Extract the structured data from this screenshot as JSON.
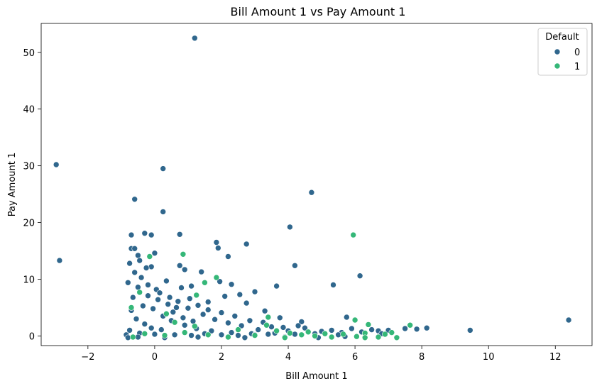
{
  "chart_data": {
    "type": "scatter",
    "title": "Bill Amount 1 vs Pay Amount 1",
    "xlabel": "Bill Amount 1",
    "ylabel": "Pay Amount 1",
    "xlim": [
      -3.4,
      13.1
    ],
    "ylim": [
      -1.7,
      55.1
    ],
    "xticks": [
      -2,
      0,
      2,
      4,
      6,
      8,
      10,
      12
    ],
    "yticks": [
      0,
      10,
      20,
      30,
      40,
      50
    ],
    "grid": false,
    "legend": {
      "title": "Default",
      "placement": "top-right",
      "entries": [
        "0",
        "1"
      ]
    },
    "colors": {
      "0": "#30678d",
      "1": "#35b778"
    },
    "series": [
      {
        "name": "0",
        "points": [
          [
            1.2,
            52.5
          ],
          [
            -2.95,
            30.2
          ],
          [
            0.25,
            29.5
          ],
          [
            4.7,
            25.3
          ],
          [
            -0.6,
            24.1
          ],
          [
            0.25,
            21.9
          ],
          [
            4.05,
            19.2
          ],
          [
            -0.3,
            18.1
          ],
          [
            -0.1,
            17.8
          ],
          [
            -0.7,
            17.8
          ],
          [
            0.75,
            17.9
          ],
          [
            1.85,
            16.5
          ],
          [
            2.75,
            16.2
          ],
          [
            -0.7,
            15.4
          ],
          [
            0.0,
            14.6
          ],
          [
            -0.5,
            14.2
          ],
          [
            2.2,
            14.0
          ],
          [
            -2.85,
            13.3
          ],
          [
            -0.75,
            12.8
          ],
          [
            0.75,
            12.4
          ],
          [
            4.2,
            12.4
          ],
          [
            -0.1,
            12.2
          ],
          [
            0.9,
            11.7
          ],
          [
            1.4,
            11.3
          ],
          [
            6.15,
            10.6
          ],
          [
            1.95,
            9.6
          ],
          [
            2.3,
            9.1
          ],
          [
            5.35,
            9.0
          ],
          [
            3.65,
            8.8
          ],
          [
            1.1,
            8.8
          ],
          [
            0.8,
            8.5
          ],
          [
            2.55,
            7.3
          ],
          [
            2.1,
            7.0
          ],
          [
            3.0,
            7.8
          ],
          [
            2.75,
            5.8
          ],
          [
            3.3,
            4.4
          ],
          [
            3.75,
            3.2
          ],
          [
            5.75,
            3.3
          ],
          [
            4.4,
            2.5
          ],
          [
            9.45,
            1.0
          ],
          [
            12.4,
            2.8
          ],
          [
            8.15,
            1.4
          ],
          [
            7.85,
            1.2
          ],
          [
            7.5,
            1.3
          ],
          [
            7.0,
            1.0
          ],
          [
            6.7,
            0.9
          ],
          [
            6.5,
            1.1
          ],
          [
            6.2,
            0.7
          ],
          [
            5.9,
            1.3
          ],
          [
            5.6,
            0.6
          ],
          [
            5.3,
            1.0
          ],
          [
            5.0,
            0.8
          ],
          [
            4.8,
            0.4
          ],
          [
            4.5,
            1.4
          ],
          [
            4.3,
            1.8
          ],
          [
            4.0,
            0.9
          ],
          [
            3.85,
            1.5
          ],
          [
            3.5,
            1.6
          ],
          [
            3.25,
            2.4
          ],
          [
            3.1,
            1.1
          ],
          [
            2.85,
            2.7
          ],
          [
            2.6,
            1.8
          ],
          [
            2.4,
            3.5
          ],
          [
            2.2,
            2.3
          ],
          [
            2.0,
            4.1
          ],
          [
            1.8,
            2.9
          ],
          [
            1.6,
            4.6
          ],
          [
            1.45,
            3.8
          ],
          [
            1.3,
            5.4
          ],
          [
            1.15,
            2.6
          ],
          [
            1.0,
            4.9
          ],
          [
            0.85,
            3.2
          ],
          [
            0.7,
            6.1
          ],
          [
            0.55,
            4.2
          ],
          [
            0.4,
            5.6
          ],
          [
            0.25,
            3.5
          ],
          [
            0.1,
            6.4
          ],
          [
            -0.05,
            4.8
          ],
          [
            -0.2,
            7.1
          ],
          [
            -0.35,
            5.3
          ],
          [
            -0.5,
            8.6
          ],
          [
            -0.65,
            6.8
          ],
          [
            -0.8,
            9.4
          ],
          [
            -0.6,
            11.2
          ],
          [
            -0.4,
            10.3
          ],
          [
            -0.2,
            9.0
          ],
          [
            0.05,
            8.2
          ],
          [
            -0.7,
            4.5
          ],
          [
            -0.55,
            3.0
          ],
          [
            -0.3,
            2.1
          ],
          [
            -0.1,
            1.4
          ],
          [
            0.2,
            1.1
          ],
          [
            0.5,
            2.7
          ],
          [
            0.9,
            1.9
          ],
          [
            1.25,
            1.3
          ],
          [
            1.7,
            0.9
          ],
          [
            2.3,
            0.6
          ],
          [
            2.9,
            0.4
          ],
          [
            3.4,
            0.3
          ],
          [
            -0.85,
            0.2
          ],
          [
            -0.75,
            1.0
          ],
          [
            -0.45,
            0.5
          ],
          [
            0.0,
            0.3
          ],
          [
            0.6,
            0.2
          ],
          [
            1.1,
            0.1
          ],
          [
            1.5,
            0.4
          ],
          [
            2.0,
            0.2
          ],
          [
            2.5,
            0.1
          ],
          [
            3.0,
            0.2
          ],
          [
            3.6,
            0.5
          ],
          [
            4.2,
            0.3
          ],
          [
            5.5,
            0.2
          ],
          [
            6.8,
            0.4
          ],
          [
            -0.8,
            -0.3
          ],
          [
            -0.5,
            -0.2
          ],
          [
            0.3,
            -0.3
          ],
          [
            1.3,
            -0.2
          ],
          [
            2.7,
            -0.3
          ],
          [
            3.9,
            -0.2
          ],
          [
            4.9,
            -0.3
          ],
          [
            5.7,
            -0.1
          ],
          [
            0.45,
            6.8
          ],
          [
            1.05,
            6.6
          ],
          [
            1.6,
            6.0
          ],
          [
            0.15,
            7.6
          ],
          [
            -0.25,
            12.0
          ],
          [
            -0.45,
            13.3
          ],
          [
            -0.6,
            15.4
          ],
          [
            1.9,
            15.5
          ],
          [
            0.35,
            9.7
          ],
          [
            0.65,
            5.0
          ]
        ]
      },
      {
        "name": "1",
        "points": [
          [
            5.95,
            17.8
          ],
          [
            0.85,
            14.4
          ],
          [
            -0.15,
            14.0
          ],
          [
            1.85,
            10.3
          ],
          [
            1.5,
            9.4
          ],
          [
            -0.45,
            7.7
          ],
          [
            1.25,
            7.2
          ],
          [
            0.35,
            3.9
          ],
          [
            3.4,
            3.3
          ],
          [
            6.0,
            2.8
          ],
          [
            6.4,
            2.0
          ],
          [
            7.65,
            1.9
          ],
          [
            3.35,
            1.9
          ],
          [
            4.05,
            0.5
          ],
          [
            4.6,
            0.7
          ],
          [
            5.1,
            0.4
          ],
          [
            5.65,
            0.3
          ],
          [
            6.3,
            0.5
          ],
          [
            7.1,
            0.6
          ],
          [
            7.25,
            -0.3
          ],
          [
            6.7,
            -0.2
          ],
          [
            6.05,
            -0.1
          ],
          [
            5.3,
            -0.2
          ],
          [
            4.8,
            0.0
          ],
          [
            3.9,
            -0.3
          ],
          [
            3.0,
            0.1
          ],
          [
            2.2,
            -0.2
          ],
          [
            1.6,
            0.2
          ],
          [
            0.9,
            0.6
          ],
          [
            0.3,
            0.1
          ],
          [
            -0.3,
            0.4
          ],
          [
            -0.65,
            -0.2
          ],
          [
            -0.7,
            5.0
          ],
          [
            0.6,
            2.4
          ],
          [
            1.2,
            1.7
          ],
          [
            2.5,
            1.1
          ],
          [
            3.65,
            0.9
          ],
          [
            4.4,
            0.2
          ],
          [
            6.3,
            -0.3
          ],
          [
            6.9,
            0.3
          ]
        ]
      }
    ]
  }
}
